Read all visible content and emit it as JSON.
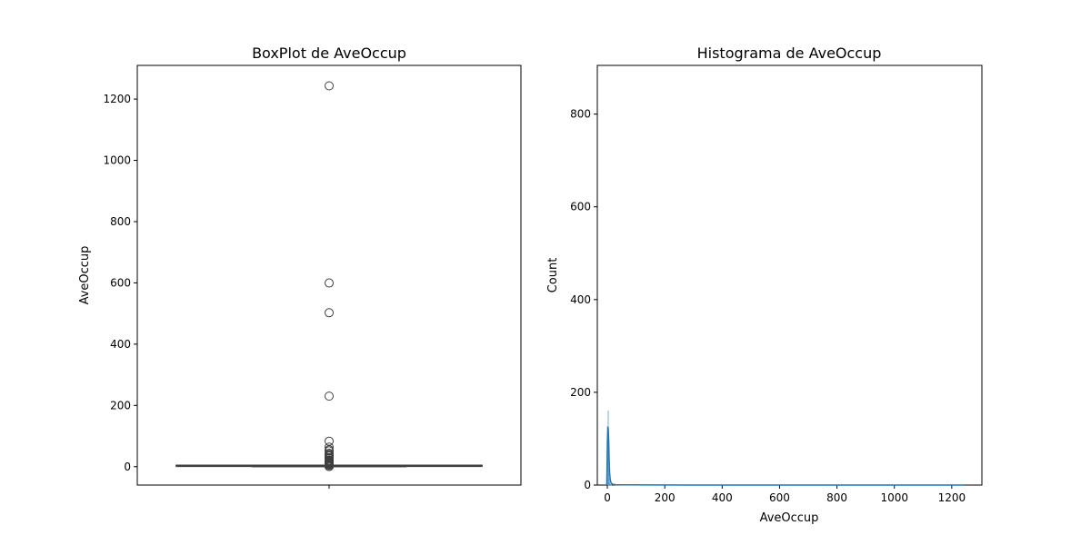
{
  "chart_data": [
    {
      "type": "box",
      "title": "BoxPlot de AveOccup",
      "xlabel": "",
      "ylabel": "AveOccup",
      "ylim": [
        -60,
        1310
      ],
      "yticks": [
        0,
        200,
        400,
        600,
        800,
        1000,
        1200
      ],
      "grid": false,
      "box": {
        "q1": 2.43,
        "median": 2.82,
        "q3": 3.28,
        "whisker_low": 1.16,
        "whisker_high": 4.56
      },
      "outliers": [
        1243.3,
        599.7,
        502.5,
        230.2,
        83.2,
        63.8,
        55.2,
        51.4,
        43.7,
        40.0,
        37.5,
        34.5,
        29.4,
        27.3,
        26.1,
        21.6,
        19.3,
        18.4,
        17.6,
        16.4,
        15.0,
        14.1,
        13.5,
        12.8,
        11.9,
        11.0,
        10.3,
        9.6,
        9.0,
        8.4,
        7.8,
        7.2,
        6.6,
        6.0,
        5.5,
        5.0,
        0.9,
        0.8,
        0.7
      ]
    },
    {
      "type": "histogram",
      "title": "Histograma de AveOccup",
      "xlabel": "AveOccup",
      "ylabel": "Count",
      "xlim": [
        -35,
        1305
      ],
      "ylim": [
        0,
        905
      ],
      "xticks": [
        0,
        200,
        400,
        600,
        800,
        1000,
        1200
      ],
      "yticks": [
        0,
        200,
        400,
        600,
        800
      ],
      "grid": false,
      "bin_width": 1.0,
      "bins": [
        {
          "x": 0.5,
          "count": 5
        },
        {
          "x": 1.5,
          "count": 122
        },
        {
          "x": 2.5,
          "count": 160
        },
        {
          "x": 3.5,
          "count": 85
        },
        {
          "x": 4.5,
          "count": 35
        },
        {
          "x": 5.5,
          "count": 14
        },
        {
          "x": 6.5,
          "count": 7
        },
        {
          "x": 7.5,
          "count": 4
        },
        {
          "x": 8.5,
          "count": 3
        },
        {
          "x": 9.5,
          "count": 2
        },
        {
          "x": 10.5,
          "count": 2
        },
        {
          "x": 11.5,
          "count": 1
        },
        {
          "x": 12.5,
          "count": 1
        },
        {
          "x": 13.5,
          "count": 1
        },
        {
          "x": 14.5,
          "count": 1
        }
      ],
      "kde": [
        [
          -2,
          0
        ],
        [
          0,
          90
        ],
        [
          1.5,
          124
        ],
        [
          3,
          123
        ],
        [
          4.5,
          100
        ],
        [
          6,
          60
        ],
        [
          8,
          25
        ],
        [
          10,
          12
        ],
        [
          12,
          6
        ],
        [
          15,
          3
        ],
        [
          20,
          1.5
        ],
        [
          30,
          0.8
        ],
        [
          60,
          0.4
        ],
        [
          150,
          0.2
        ],
        [
          300,
          0.1
        ],
        [
          600,
          0.1
        ],
        [
          900,
          0.05
        ],
        [
          1245,
          0.05
        ]
      ]
    }
  ]
}
